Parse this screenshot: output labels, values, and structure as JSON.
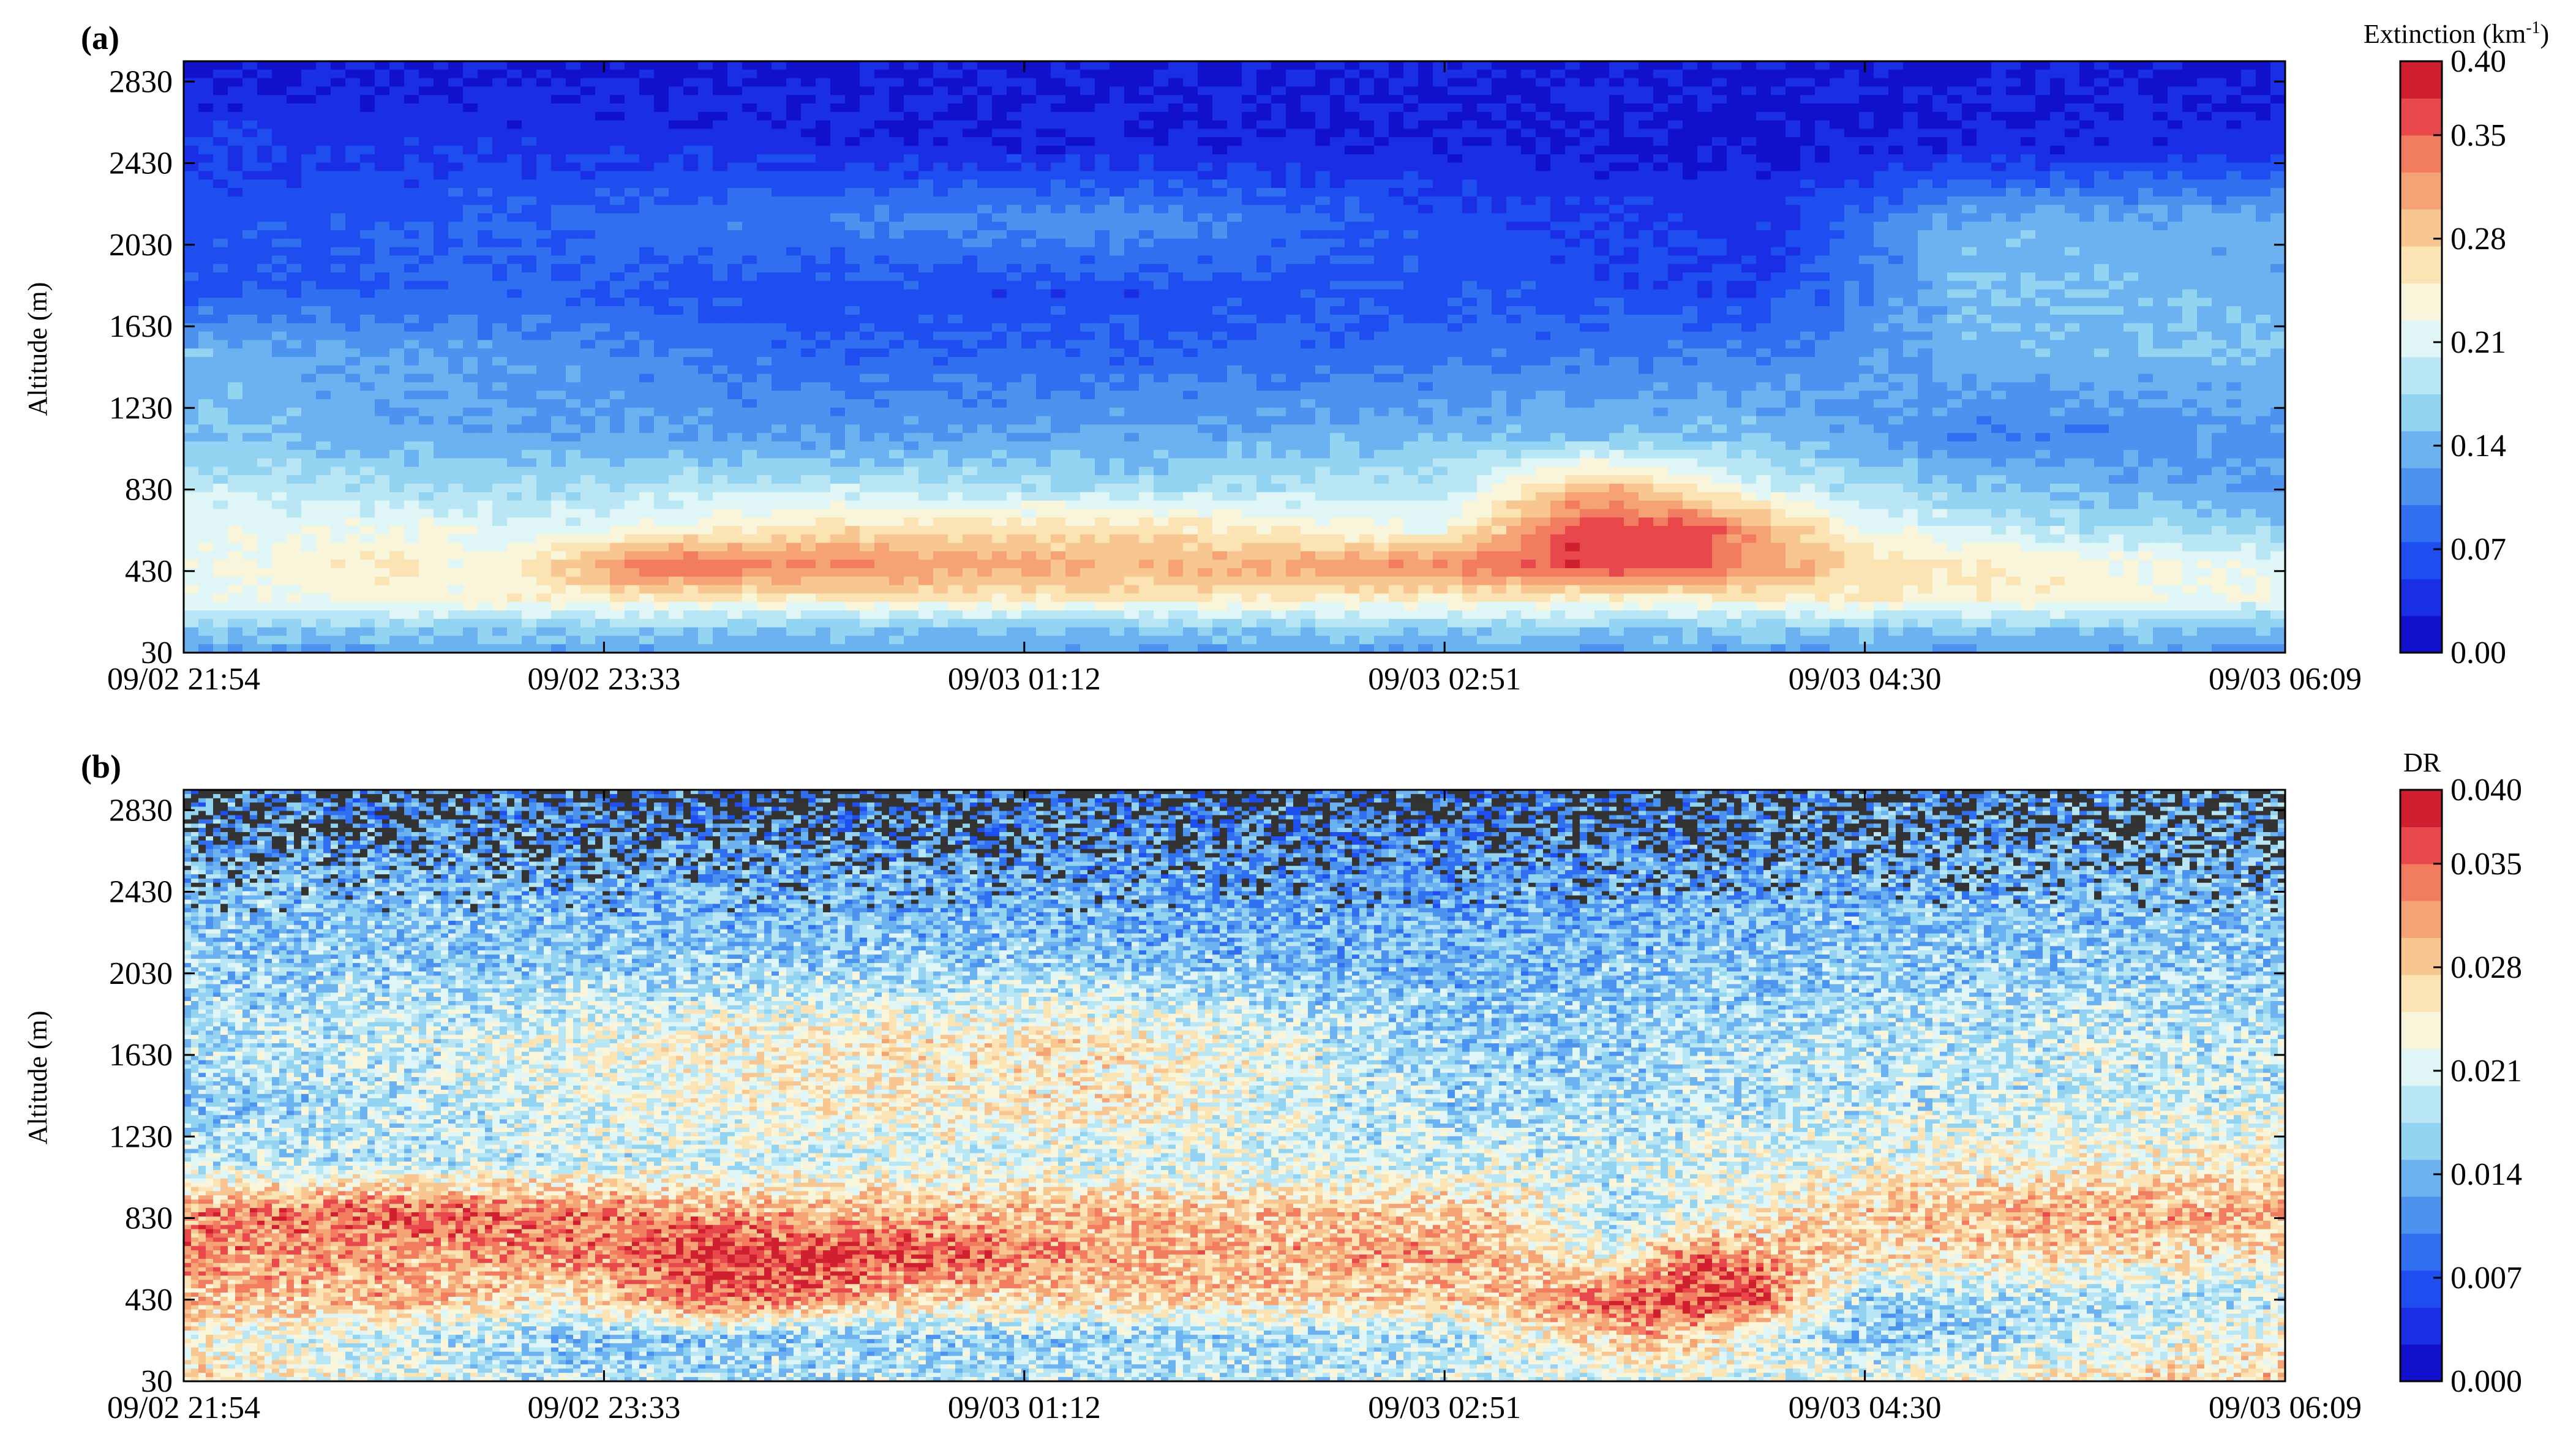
{
  "chart_data": [
    {
      "type": "heatmap",
      "panel_label": "(a)",
      "ylabel": "Altitude (m)",
      "x_ticks": [
        "09/02 21:54",
        "09/02 23:33",
        "09/03 01:12",
        "09/03 02:51",
        "09/03 04:30",
        "09/03 06:09"
      ],
      "y_ticks": [
        "30",
        "430",
        "830",
        "1230",
        "1630",
        "2030",
        "2430",
        "2830"
      ],
      "ylim": [
        30,
        2930
      ],
      "colorbar": {
        "title": "Extinction (km",
        "title_sup": "-1",
        "title_end": ")",
        "range": [
          0,
          0.4
        ],
        "levels": 16,
        "ticks": [
          "0.00",
          "0.07",
          "0.14",
          "0.21",
          "0.28",
          "0.35",
          "0.40"
        ]
      },
      "colors": [
        "#1111cc",
        "#1a2ee6",
        "#1f4ef0",
        "#2f6ff0",
        "#4c92ef",
        "#6cb2f0",
        "#93d3f2",
        "#b9e6f4",
        "#dff5f6",
        "#f9f5da",
        "#fbe3b4",
        "#f8c690",
        "#f5a374",
        "#f27c5f",
        "#e8474b",
        "#d0202f"
      ],
      "description_rows": [
        {
          "alt": 2930,
          "t": [
            0,
            0.2,
            0.4,
            0.6,
            0.8,
            1.0
          ],
          "v": [
            0.02,
            0.02,
            0.02,
            0.02,
            0.02,
            0.02
          ]
        },
        {
          "alt": 2500,
          "t": [
            0,
            0.2,
            0.4,
            0.6,
            0.75,
            0.85,
            1.0
          ],
          "v": [
            0.05,
            0.04,
            0.03,
            0.03,
            0.02,
            0.03,
            0.04
          ]
        },
        {
          "alt": 2150,
          "t": [
            0,
            0.15,
            0.3,
            0.45,
            0.6,
            0.75,
            0.85,
            1.0
          ],
          "v": [
            0.06,
            0.08,
            0.1,
            0.12,
            0.06,
            0.04,
            0.14,
            0.13
          ]
        },
        {
          "alt": 1800,
          "t": [
            0,
            0.15,
            0.3,
            0.45,
            0.6,
            0.75,
            0.85,
            1.0
          ],
          "v": [
            0.07,
            0.08,
            0.06,
            0.06,
            0.07,
            0.05,
            0.15,
            0.14
          ]
        },
        {
          "alt": 1500,
          "t": [
            0,
            0.15,
            0.3,
            0.45,
            0.6,
            0.75,
            0.85,
            1.0
          ],
          "v": [
            0.14,
            0.12,
            0.08,
            0.08,
            0.09,
            0.1,
            0.14,
            0.15
          ]
        },
        {
          "alt": 1100,
          "t": [
            0,
            0.15,
            0.3,
            0.45,
            0.6,
            0.75,
            0.85,
            1.0
          ],
          "v": [
            0.15,
            0.13,
            0.12,
            0.13,
            0.14,
            0.15,
            0.1,
            0.12
          ]
        },
        {
          "alt": 850,
          "t": [
            0,
            0.15,
            0.3,
            0.45,
            0.6,
            0.68,
            0.75,
            0.85,
            1.0
          ],
          "v": [
            0.19,
            0.17,
            0.19,
            0.17,
            0.19,
            0.3,
            0.2,
            0.15,
            0.12
          ]
        },
        {
          "alt": 650,
          "t": [
            0,
            0.1,
            0.2,
            0.3,
            0.45,
            0.6,
            0.66,
            0.72,
            0.8,
            0.9,
            1.0
          ],
          "v": [
            0.22,
            0.22,
            0.21,
            0.26,
            0.26,
            0.22,
            0.36,
            0.36,
            0.22,
            0.18,
            0.16
          ]
        },
        {
          "alt": 450,
          "t": [
            0,
            0.1,
            0.15,
            0.22,
            0.3,
            0.45,
            0.6,
            0.66,
            0.72,
            0.8,
            0.9,
            1.0
          ],
          "v": [
            0.22,
            0.26,
            0.22,
            0.36,
            0.33,
            0.3,
            0.33,
            0.37,
            0.36,
            0.27,
            0.24,
            0.22
          ]
        },
        {
          "alt": 300,
          "t": [
            0,
            0.1,
            0.2,
            0.4,
            0.6,
            0.8,
            1.0
          ],
          "v": [
            0.22,
            0.23,
            0.25,
            0.26,
            0.25,
            0.25,
            0.22
          ]
        },
        {
          "alt": 150,
          "t": [
            0,
            0.2,
            0.4,
            0.6,
            0.8,
            1.0
          ],
          "v": [
            0.16,
            0.16,
            0.15,
            0.16,
            0.16,
            0.15
          ]
        },
        {
          "alt": 30,
          "t": [
            0,
            0.2,
            0.4,
            0.6,
            0.8,
            1.0
          ],
          "v": [
            0.12,
            0.13,
            0.13,
            0.13,
            0.12,
            0.13
          ]
        }
      ]
    },
    {
      "type": "heatmap",
      "panel_label": "(b)",
      "ylabel": "Altitude (m)",
      "x_ticks": [
        "09/02 21:54",
        "09/02 23:33",
        "09/03 01:12",
        "09/03 02:51",
        "09/03 04:30",
        "09/03 06:09"
      ],
      "y_ticks": [
        "30",
        "430",
        "830",
        "1230",
        "1630",
        "2030",
        "2430",
        "2830"
      ],
      "ylim": [
        30,
        2930
      ],
      "colorbar": {
        "title": "DR",
        "range": [
          0,
          0.04
        ],
        "levels": 16,
        "ticks": [
          "0.000",
          "0.007",
          "0.014",
          "0.021",
          "0.028",
          "0.035",
          "0.040"
        ]
      },
      "colors": [
        "#1111cc",
        "#1a2ee6",
        "#1f4ef0",
        "#2f6ff0",
        "#4c92ef",
        "#6cb2f0",
        "#93d3f2",
        "#b9e6f4",
        "#dff5f6",
        "#f9f5da",
        "#fbe3b4",
        "#f8c690",
        "#f5a374",
        "#f27c5f",
        "#e8474b",
        "#d0202f"
      ],
      "no_data_color": "#333333",
      "description_rows": [
        {
          "alt": 2930,
          "t": [
            0,
            0.2,
            0.4,
            0.6,
            0.8,
            1.0
          ],
          "v": [
            0.012,
            0.01,
            0.011,
            0.01,
            0.012,
            0.014
          ]
        },
        {
          "alt": 2500,
          "t": [
            0,
            0.2,
            0.4,
            0.6,
            0.8,
            1.0
          ],
          "v": [
            0.015,
            0.014,
            0.013,
            0.012,
            0.014,
            0.015
          ]
        },
        {
          "alt": 2100,
          "t": [
            0,
            0.2,
            0.4,
            0.6,
            0.8,
            1.0
          ],
          "v": [
            0.017,
            0.016,
            0.016,
            0.014,
            0.016,
            0.016
          ]
        },
        {
          "alt": 1700,
          "t": [
            0,
            0.15,
            0.3,
            0.45,
            0.62,
            0.75,
            0.9,
            1.0
          ],
          "v": [
            0.018,
            0.021,
            0.025,
            0.025,
            0.016,
            0.018,
            0.02,
            0.019
          ]
        },
        {
          "alt": 1400,
          "t": [
            0,
            0.15,
            0.3,
            0.45,
            0.62,
            0.75,
            0.9,
            1.0
          ],
          "v": [
            0.016,
            0.02,
            0.024,
            0.025,
            0.017,
            0.019,
            0.02,
            0.02
          ]
        },
        {
          "alt": 1100,
          "t": [
            0,
            0.2,
            0.4,
            0.6,
            0.75,
            0.9,
            1.0
          ],
          "v": [
            0.019,
            0.02,
            0.021,
            0.02,
            0.022,
            0.024,
            0.024
          ]
        },
        {
          "alt": 850,
          "t": [
            0,
            0.1,
            0.2,
            0.3,
            0.45,
            0.62,
            0.68,
            0.8,
            0.9,
            1.0
          ],
          "v": [
            0.032,
            0.036,
            0.033,
            0.03,
            0.029,
            0.028,
            0.018,
            0.028,
            0.031,
            0.03
          ]
        },
        {
          "alt": 650,
          "t": [
            0,
            0.1,
            0.2,
            0.25,
            0.35,
            0.45,
            0.6,
            0.68,
            0.72,
            0.8,
            1.0
          ],
          "v": [
            0.033,
            0.03,
            0.033,
            0.038,
            0.036,
            0.03,
            0.031,
            0.022,
            0.034,
            0.026,
            0.026
          ]
        },
        {
          "alt": 430,
          "t": [
            0,
            0.1,
            0.18,
            0.25,
            0.35,
            0.5,
            0.62,
            0.7,
            0.75,
            0.8,
            1.0
          ],
          "v": [
            0.028,
            0.03,
            0.024,
            0.036,
            0.027,
            0.027,
            0.028,
            0.037,
            0.036,
            0.017,
            0.019
          ]
        },
        {
          "alt": 250,
          "t": [
            0,
            0.2,
            0.4,
            0.6,
            0.7,
            0.8,
            1.0
          ],
          "v": [
            0.024,
            0.016,
            0.017,
            0.018,
            0.03,
            0.015,
            0.024
          ]
        },
        {
          "alt": 30,
          "t": [
            0,
            0.2,
            0.4,
            0.6,
            0.8,
            1.0
          ],
          "v": [
            0.026,
            0.018,
            0.019,
            0.02,
            0.022,
            0.028
          ]
        }
      ]
    }
  ]
}
